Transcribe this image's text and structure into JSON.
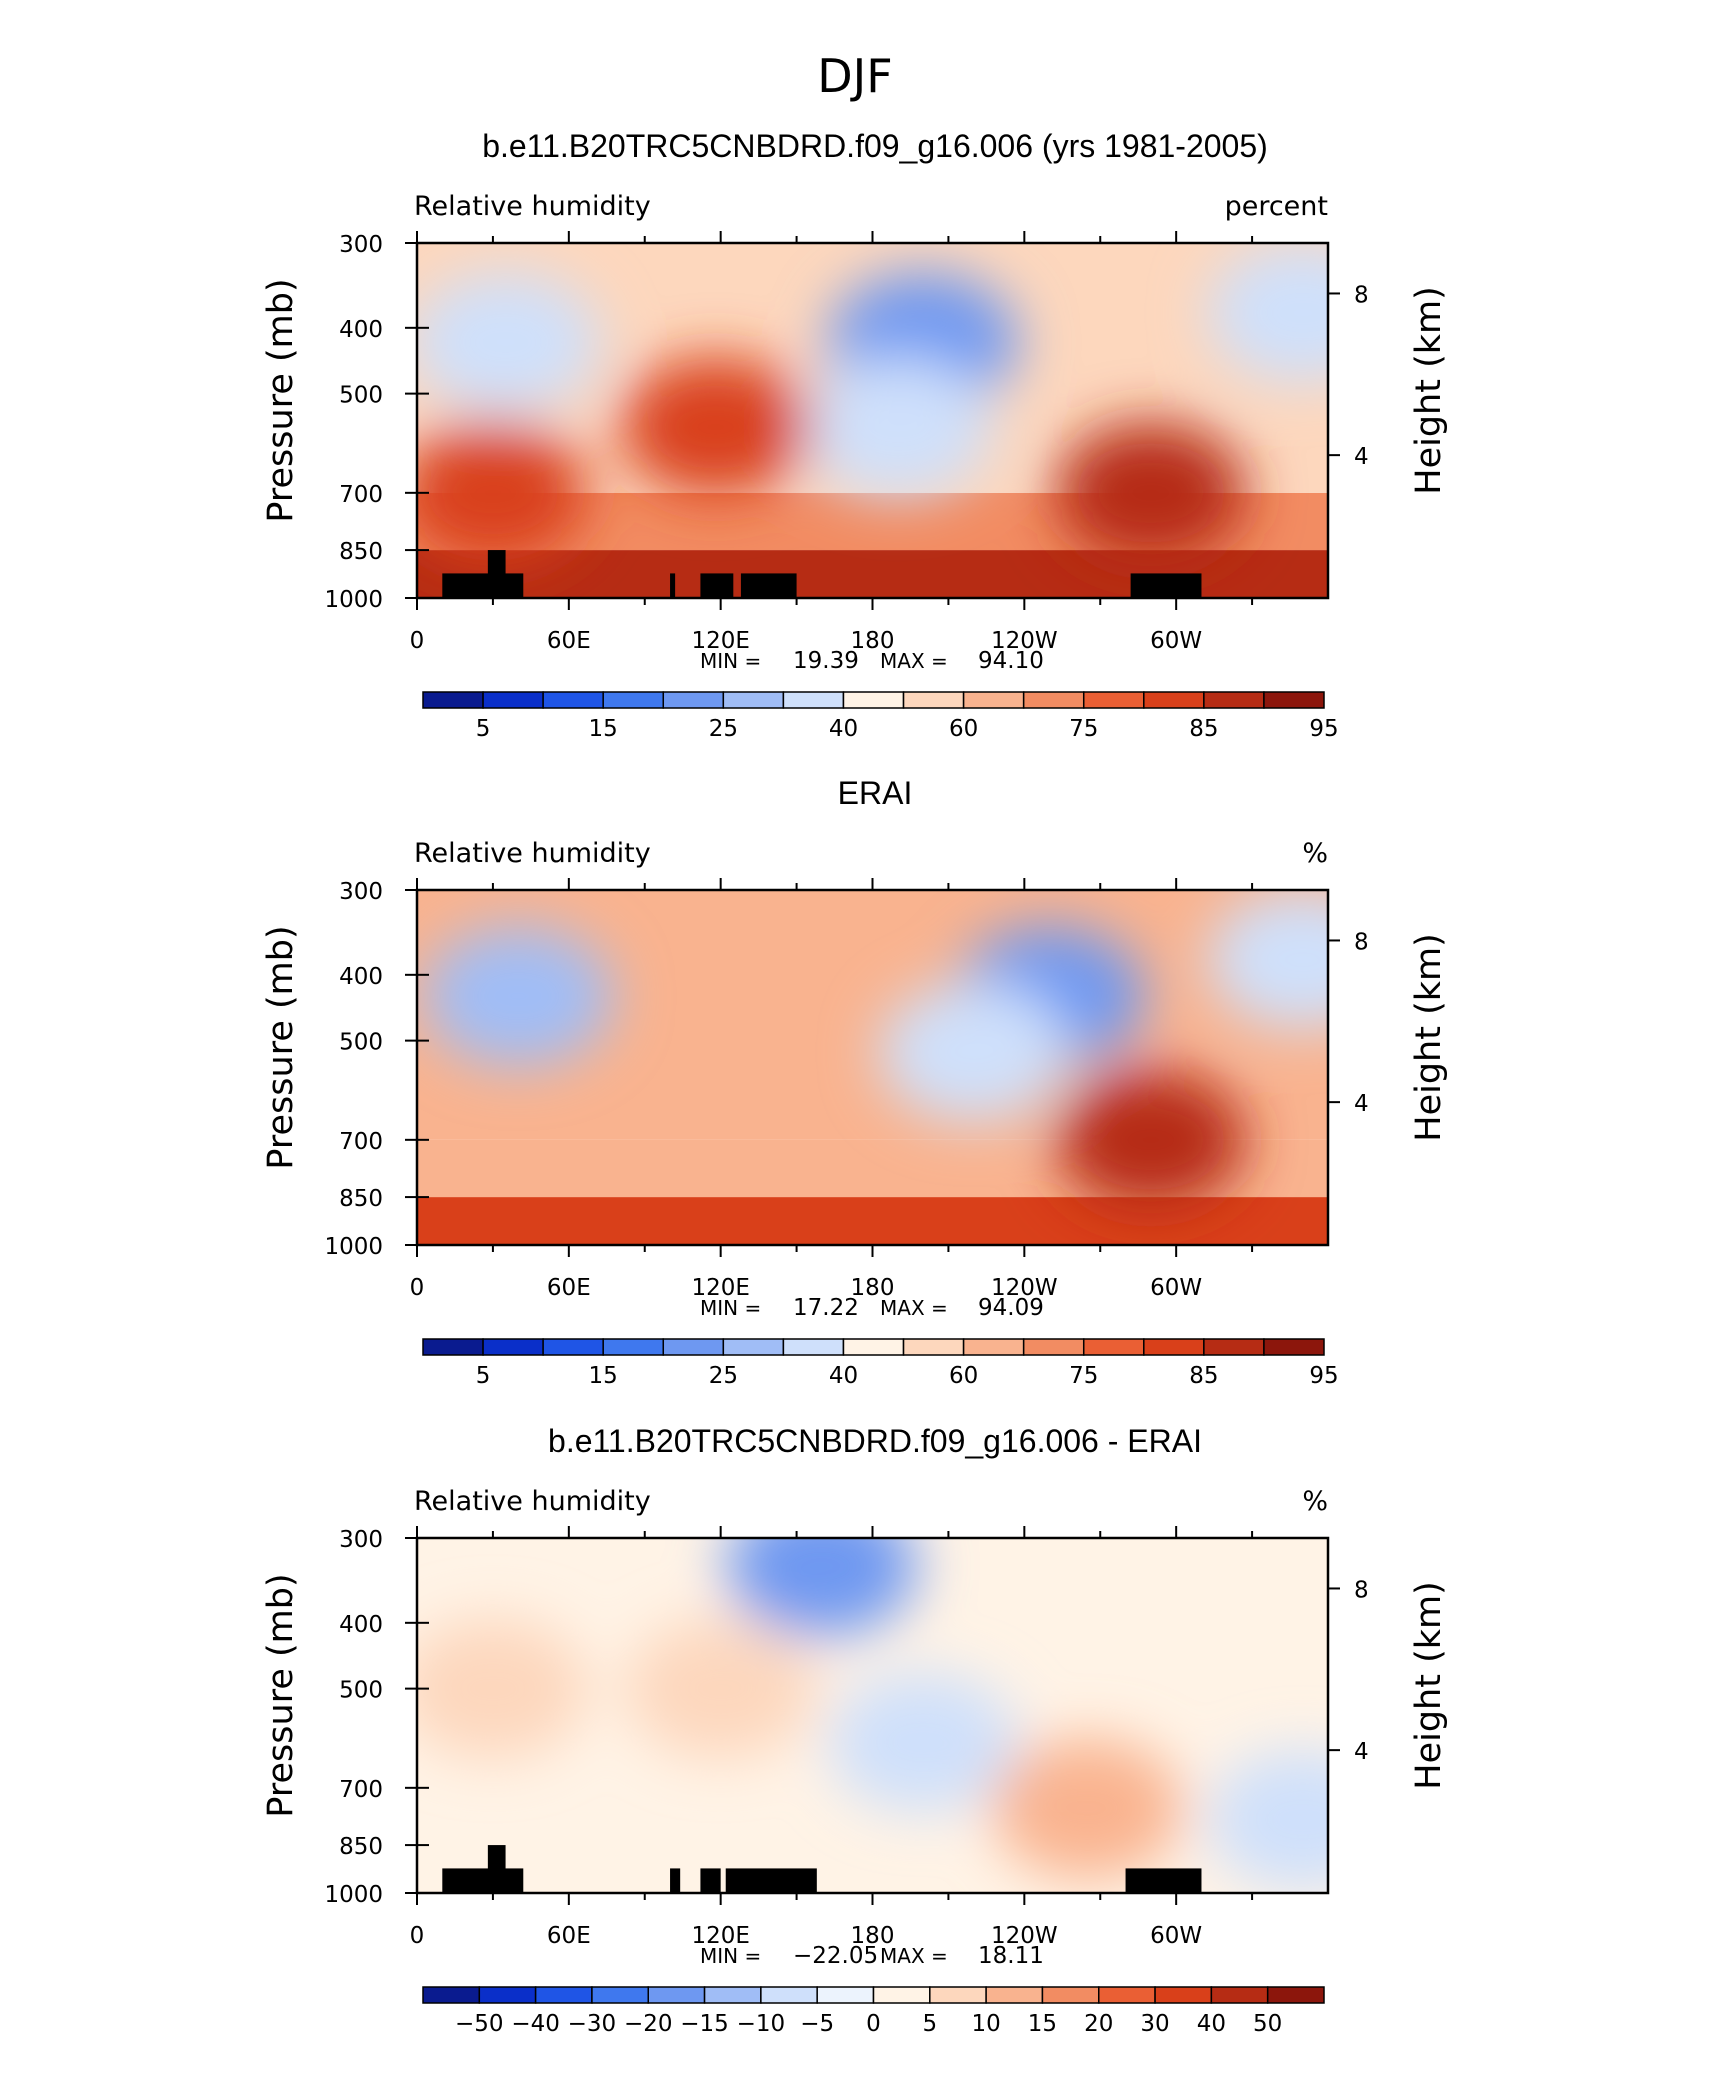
{
  "figure": {
    "title": "DJF"
  },
  "colors": {
    "abs_scale": [
      "#0a1b8f",
      "#0a2fc9",
      "#1f55e6",
      "#3f78ee",
      "#6e98f1",
      "#a0bdf6",
      "#cfe0fb",
      "#fff3e6",
      "#fdd7bd",
      "#f9b38f",
      "#f28c62",
      "#ea5f34",
      "#d9401a",
      "#b62c14",
      "#8c160c"
    ],
    "diff_scale": [
      "#0a1b8f",
      "#0a2fc9",
      "#1f55e6",
      "#3f78ee",
      "#6e98f1",
      "#a0bdf6",
      "#cfe0fb",
      "#ecf3fd",
      "#fff3e6",
      "#fdd7bd",
      "#f9b38f",
      "#f28c62",
      "#ea5f34",
      "#d9401a",
      "#b62c14",
      "#8c160c"
    ]
  },
  "chart_data": [
    {
      "type": "heatmap",
      "title": "b.e11.B20TRC5CNBDRD.f09_g16.006 (yrs 1981-2005)",
      "left_string": "Relative humidity",
      "right_string": "percent",
      "ylabel": "Pressure (mb)",
      "ylabel_right": "Height (km)",
      "x_ticks": [
        "0",
        "60E",
        "120E",
        "180",
        "120W",
        "60W"
      ],
      "y_ticks": [
        "300",
        "400",
        "500",
        "700",
        "850",
        "1000"
      ],
      "y_ticks_right": [
        "8",
        "4"
      ],
      "x_range": [
        0,
        360
      ],
      "y_range_mb": [
        1000,
        300
      ],
      "y_scale": "log",
      "min_label": "MIN =",
      "min_value": "19.39",
      "max_label": "MAX =",
      "max_value": "94.10",
      "colorbar_labels": [
        "5",
        "15",
        "25",
        "40",
        "60",
        "75",
        "85",
        "95"
      ],
      "fields": {
        "bands": [
          {
            "lon": [
              0,
              360
            ],
            "p": [
              1000,
              850
            ],
            "value": 88
          },
          {
            "lon": [
              0,
              360
            ],
            "p": [
              850,
              700
            ],
            "value": 72
          },
          {
            "lon": [
              0,
              360
            ],
            "p": [
              700,
              300
            ],
            "value": 58
          }
        ],
        "blobs": [
          {
            "lon": 200,
            "p": 420,
            "value": 25,
            "note": "dry core central Pacific"
          },
          {
            "lon": 190,
            "p": 560,
            "value": 40
          },
          {
            "lon": 35,
            "p": 420,
            "value": 40
          },
          {
            "lon": 350,
            "p": 380,
            "value": 35
          },
          {
            "lon": 118,
            "p": 560,
            "value": 85
          },
          {
            "lon": 290,
            "p": 700,
            "value": 90
          },
          {
            "lon": 30,
            "p": 700,
            "value": 85
          }
        ],
        "topography": [
          {
            "lon": [
              10,
              42
            ],
            "p": 920
          },
          {
            "lon": [
              28,
              35
            ],
            "p": 850
          },
          {
            "lon": [
              100,
              102
            ],
            "p": 920
          },
          {
            "lon": [
              112,
              125
            ],
            "p": 920
          },
          {
            "lon": [
              128,
              150
            ],
            "p": 920
          },
          {
            "lon": [
              282,
              310
            ],
            "p": 920
          }
        ]
      }
    },
    {
      "type": "heatmap",
      "title": "ERAI",
      "left_string": "Relative humidity",
      "right_string": "%",
      "ylabel": "Pressure (mb)",
      "ylabel_right": "Height (km)",
      "x_ticks": [
        "0",
        "60E",
        "120E",
        "180",
        "120W",
        "60W"
      ],
      "y_ticks": [
        "300",
        "400",
        "500",
        "700",
        "850",
        "1000"
      ],
      "y_ticks_right": [
        "8",
        "4"
      ],
      "x_range": [
        0,
        360
      ],
      "y_range_mb": [
        1000,
        300
      ],
      "y_scale": "log",
      "min_label": "MIN =",
      "min_value": "17.22",
      "max_label": "MAX =",
      "max_value": "94.09",
      "colorbar_labels": [
        "5",
        "15",
        "25",
        "40",
        "60",
        "75",
        "85",
        "95"
      ],
      "fields": {
        "bands": [
          {
            "lon": [
              0,
              360
            ],
            "p": [
              1000,
              850
            ],
            "value": 85
          },
          {
            "lon": [
              0,
              360
            ],
            "p": [
              850,
              700
            ],
            "value": 70
          },
          {
            "lon": [
              0,
              360
            ],
            "p": [
              700,
              300
            ],
            "value": 62
          }
        ],
        "blobs": [
          {
            "lon": 250,
            "p": 430,
            "value": 22,
            "note": "dry core eastern Pacific"
          },
          {
            "lon": 220,
            "p": 520,
            "value": 38
          },
          {
            "lon": 40,
            "p": 430,
            "value": 30
          },
          {
            "lon": 350,
            "p": 380,
            "value": 35
          },
          {
            "lon": 290,
            "p": 700,
            "value": 88
          }
        ],
        "topography": []
      }
    },
    {
      "type": "heatmap",
      "title": "b.e11.B20TRC5CNBDRD.f09_g16.006 - ERAI",
      "left_string": "Relative humidity",
      "right_string": "%",
      "ylabel": "Pressure (mb)",
      "ylabel_right": "Height (km)",
      "x_ticks": [
        "0",
        "60E",
        "120E",
        "180",
        "120W",
        "60W"
      ],
      "y_ticks": [
        "300",
        "400",
        "500",
        "700",
        "850",
        "1000"
      ],
      "y_ticks_right": [
        "8",
        "4"
      ],
      "x_range": [
        0,
        360
      ],
      "y_range_mb": [
        1000,
        300
      ],
      "y_scale": "log",
      "min_label": "MIN =",
      "min_value": "−22.05",
      "max_label": "MAX =",
      "max_value": "18.11",
      "colorbar_labels": [
        "−50",
        "−40",
        "−30",
        "−20",
        "−15",
        "−10",
        "−5",
        "0",
        "5",
        "10",
        "15",
        "20",
        "30",
        "40",
        "50"
      ],
      "fields": {
        "bands": [
          {
            "lon": [
              0,
              360
            ],
            "p": [
              1000,
              300
            ],
            "value": 3
          }
        ],
        "blobs": [
          {
            "lon": 200,
            "p": 600,
            "value": -8,
            "note": "dry bias Pacific column"
          },
          {
            "lon": 160,
            "p": 330,
            "value": -18
          },
          {
            "lon": 30,
            "p": 500,
            "value": 8
          },
          {
            "lon": 120,
            "p": 500,
            "value": 10
          },
          {
            "lon": 265,
            "p": 750,
            "value": 12
          },
          {
            "lon": 350,
            "p": 780,
            "value": -6
          }
        ],
        "topography": [
          {
            "lon": [
              10,
              42
            ],
            "p": 920
          },
          {
            "lon": [
              28,
              35
            ],
            "p": 850
          },
          {
            "lon": [
              100,
              104
            ],
            "p": 920
          },
          {
            "lon": [
              112,
              120
            ],
            "p": 920
          },
          {
            "lon": [
              122,
              158
            ],
            "p": 920
          },
          {
            "lon": [
              280,
              310
            ],
            "p": 920
          }
        ]
      }
    }
  ]
}
